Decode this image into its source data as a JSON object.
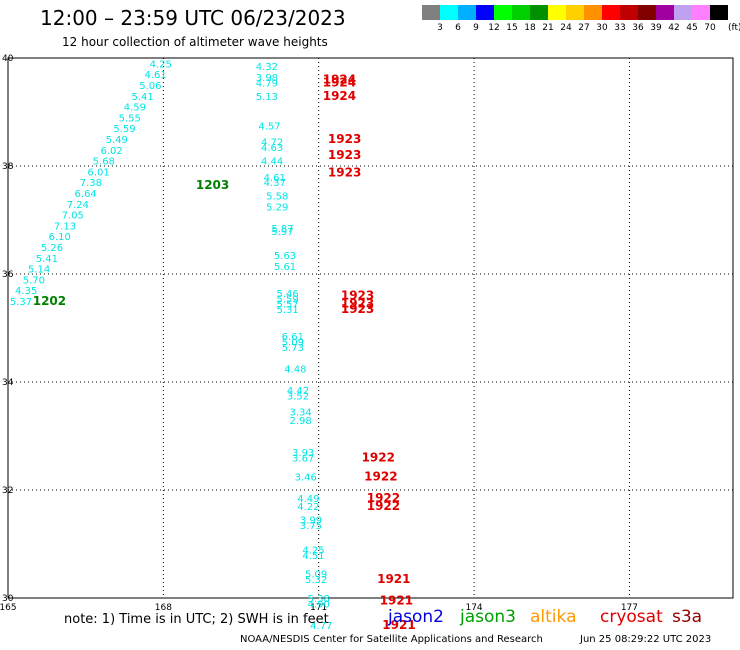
{
  "header": {
    "title": "12:00 – 23:59 UTC 06/23/2023",
    "subtitle": "12 hour collection of altimeter wave heights"
  },
  "legend": {
    "unit": "(ft)",
    "colors": [
      "#808080",
      "#00ffff",
      "#00b0ff",
      "#0000ff",
      "#00ff00",
      "#00d000",
      "#009000",
      "#ffff00",
      "#ffd000",
      "#ff9000",
      "#ff0000",
      "#c00000",
      "#800000",
      "#a000a0",
      "#c0a0f0",
      "#ff80ff",
      "#000000"
    ],
    "labels": [
      "3",
      "6",
      "9",
      "12",
      "15",
      "18",
      "21",
      "24",
      "27",
      "30",
      "33",
      "36",
      "39",
      "42",
      "45",
      "70"
    ]
  },
  "axes": {
    "lat_labels": [
      "40",
      "38",
      "36",
      "34",
      "32",
      "30"
    ],
    "lon_labels": [
      "165",
      "168",
      "171",
      "174",
      "177"
    ]
  },
  "map": {
    "track_left": {
      "color": "#00e5e5",
      "points": [
        {
          "lon": 167.95,
          "lat": 39.9,
          "v": "4.25"
        },
        {
          "lon": 167.85,
          "lat": 39.7,
          "v": "4.61"
        },
        {
          "lon": 167.75,
          "lat": 39.5,
          "v": "5.06"
        },
        {
          "lon": 167.6,
          "lat": 39.3,
          "v": "5.41"
        },
        {
          "lon": 167.45,
          "lat": 39.1,
          "v": "4.59"
        },
        {
          "lon": 167.35,
          "lat": 38.9,
          "v": "5.55"
        },
        {
          "lon": 167.25,
          "lat": 38.7,
          "v": "5.59"
        },
        {
          "lon": 167.1,
          "lat": 38.5,
          "v": "5.49"
        },
        {
          "lon": 167.0,
          "lat": 38.3,
          "v": "6.02"
        },
        {
          "lon": 166.85,
          "lat": 38.1,
          "v": "5.68"
        },
        {
          "lon": 166.75,
          "lat": 37.9,
          "v": "6.01"
        },
        {
          "lon": 166.6,
          "lat": 37.7,
          "v": "7.38"
        },
        {
          "lon": 166.5,
          "lat": 37.5,
          "v": "6.64"
        },
        {
          "lon": 166.35,
          "lat": 37.3,
          "v": "7.24"
        },
        {
          "lon": 166.25,
          "lat": 37.1,
          "v": "7.05"
        },
        {
          "lon": 166.1,
          "lat": 36.9,
          "v": "7.13"
        },
        {
          "lon": 166.0,
          "lat": 36.7,
          "v": "6.10"
        },
        {
          "lon": 165.85,
          "lat": 36.5,
          "v": "5.26"
        },
        {
          "lon": 165.75,
          "lat": 36.3,
          "v": "5.41"
        },
        {
          "lon": 165.6,
          "lat": 36.1,
          "v": "5.14"
        },
        {
          "lon": 165.5,
          "lat": 35.9,
          "v": "5.70"
        },
        {
          "lon": 165.35,
          "lat": 35.7,
          "v": "4.35"
        },
        {
          "lon": 165.25,
          "lat": 35.5,
          "v": "5.37"
        }
      ]
    },
    "track_right": {
      "color": "#00e5e5",
      "points": [
        {
          "lon": 170.0,
          "lat": 39.85,
          "v": "4.32"
        },
        {
          "lon": 170.0,
          "lat": 39.65,
          "v": "3.98"
        },
        {
          "lon": 170.0,
          "lat": 39.55,
          "v": "4.79"
        },
        {
          "lon": 170.0,
          "lat": 39.3,
          "v": "5.13"
        },
        {
          "lon": 170.05,
          "lat": 38.75,
          "v": "4.57"
        },
        {
          "lon": 170.1,
          "lat": 38.45,
          "v": "4.72"
        },
        {
          "lon": 170.1,
          "lat": 38.35,
          "v": "4.63"
        },
        {
          "lon": 170.1,
          "lat": 38.1,
          "v": "4.44"
        },
        {
          "lon": 170.15,
          "lat": 37.8,
          "v": "4.61"
        },
        {
          "lon": 170.15,
          "lat": 37.7,
          "v": "4.37"
        },
        {
          "lon": 170.2,
          "lat": 37.45,
          "v": "5.58"
        },
        {
          "lon": 170.2,
          "lat": 37.25,
          "v": "5.29"
        },
        {
          "lon": 170.3,
          "lat": 36.85,
          "v": "5.87"
        },
        {
          "lon": 170.3,
          "lat": 36.8,
          "v": "5.97"
        },
        {
          "lon": 170.35,
          "lat": 36.35,
          "v": "5.63"
        },
        {
          "lon": 170.35,
          "lat": 36.15,
          "v": "5.61"
        },
        {
          "lon": 170.4,
          "lat": 35.65,
          "v": "5.46"
        },
        {
          "lon": 170.4,
          "lat": 35.55,
          "v": "5.59"
        },
        {
          "lon": 170.4,
          "lat": 35.45,
          "v": "5.57"
        },
        {
          "lon": 170.4,
          "lat": 35.35,
          "v": "5.31"
        },
        {
          "lon": 170.5,
          "lat": 34.85,
          "v": "6.61"
        },
        {
          "lon": 170.5,
          "lat": 34.75,
          "v": "5.09"
        },
        {
          "lon": 170.5,
          "lat": 34.65,
          "v": "5.73"
        },
        {
          "lon": 170.55,
          "lat": 34.25,
          "v": "4.48"
        },
        {
          "lon": 170.6,
          "lat": 33.85,
          "v": "4.42"
        },
        {
          "lon": 170.6,
          "lat": 33.75,
          "v": "3.52"
        },
        {
          "lon": 170.65,
          "lat": 33.45,
          "v": "3.34"
        },
        {
          "lon": 170.65,
          "lat": 33.3,
          "v": "2.98"
        },
        {
          "lon": 170.7,
          "lat": 32.7,
          "v": "3.93"
        },
        {
          "lon": 170.7,
          "lat": 32.6,
          "v": "3.67"
        },
        {
          "lon": 170.75,
          "lat": 32.25,
          "v": "3.46"
        },
        {
          "lon": 170.8,
          "lat": 31.85,
          "v": "4.49"
        },
        {
          "lon": 170.8,
          "lat": 31.7,
          "v": "4.22"
        },
        {
          "lon": 170.85,
          "lat": 31.45,
          "v": "3.99"
        },
        {
          "lon": 170.85,
          "lat": 31.35,
          "v": "3.75"
        },
        {
          "lon": 170.9,
          "lat": 30.9,
          "v": "4.25"
        },
        {
          "lon": 170.9,
          "lat": 30.8,
          "v": "4.51"
        },
        {
          "lon": 170.95,
          "lat": 30.45,
          "v": "5.09"
        },
        {
          "lon": 170.95,
          "lat": 30.35,
          "v": "5.32"
        },
        {
          "lon": 171.0,
          "lat": 30.0,
          "v": "5.38"
        },
        {
          "lon": 171.0,
          "lat": 29.9,
          "v": "4.90"
        },
        {
          "lon": 171.05,
          "lat": 29.5,
          "v": "4.77"
        }
      ]
    },
    "time_labels": [
      {
        "lon": 168.95,
        "lat": 37.65,
        "v": "1203",
        "color": "#008000"
      },
      {
        "lon": 165.8,
        "lat": 35.5,
        "v": "1202",
        "color": "#008000"
      },
      {
        "lon": 171.4,
        "lat": 39.6,
        "v": "1924",
        "color": "#e00000"
      },
      {
        "lon": 171.4,
        "lat": 39.55,
        "v": "1924",
        "color": "#e00000"
      },
      {
        "lon": 171.4,
        "lat": 39.3,
        "v": "1924",
        "color": "#e00000"
      },
      {
        "lon": 171.5,
        "lat": 38.5,
        "v": "1923",
        "color": "#e00000"
      },
      {
        "lon": 171.5,
        "lat": 38.2,
        "v": "1923",
        "color": "#e00000"
      },
      {
        "lon": 171.5,
        "lat": 37.88,
        "v": "1923",
        "color": "#e00000"
      },
      {
        "lon": 171.75,
        "lat": 35.6,
        "v": "1923",
        "color": "#e00000"
      },
      {
        "lon": 171.75,
        "lat": 35.45,
        "v": "1923",
        "color": "#e00000"
      },
      {
        "lon": 171.75,
        "lat": 35.35,
        "v": "1923",
        "color": "#e00000"
      },
      {
        "lon": 172.15,
        "lat": 32.6,
        "v": "1922",
        "color": "#e00000"
      },
      {
        "lon": 172.2,
        "lat": 32.25,
        "v": "1922",
        "color": "#e00000"
      },
      {
        "lon": 172.25,
        "lat": 31.85,
        "v": "1922",
        "color": "#e00000"
      },
      {
        "lon": 172.25,
        "lat": 31.7,
        "v": "1922",
        "color": "#e00000"
      },
      {
        "lon": 172.45,
        "lat": 30.35,
        "v": "1921",
        "color": "#e00000"
      },
      {
        "lon": 172.5,
        "lat": 29.95,
        "v": "1921",
        "color": "#e00000"
      },
      {
        "lon": 172.55,
        "lat": 29.5,
        "v": "1921",
        "color": "#e00000"
      }
    ]
  },
  "footer": {
    "note": "note:  1) Time is in UTC;  2) SWH is in feet",
    "satellites": [
      {
        "name": "jason2",
        "color": "#0000e0"
      },
      {
        "name": "jason3",
        "color": "#00a000"
      },
      {
        "name": "altika",
        "color": "#ff9900"
      },
      {
        "name": "cryosat",
        "color": "#e00000"
      },
      {
        "name": "s3a",
        "color": "#900000"
      }
    ],
    "credit": "NOAA/NESDIS Center for Satellite Applications and Research",
    "timestamp": "Jun 25 08:29:22 UTC 2023"
  }
}
